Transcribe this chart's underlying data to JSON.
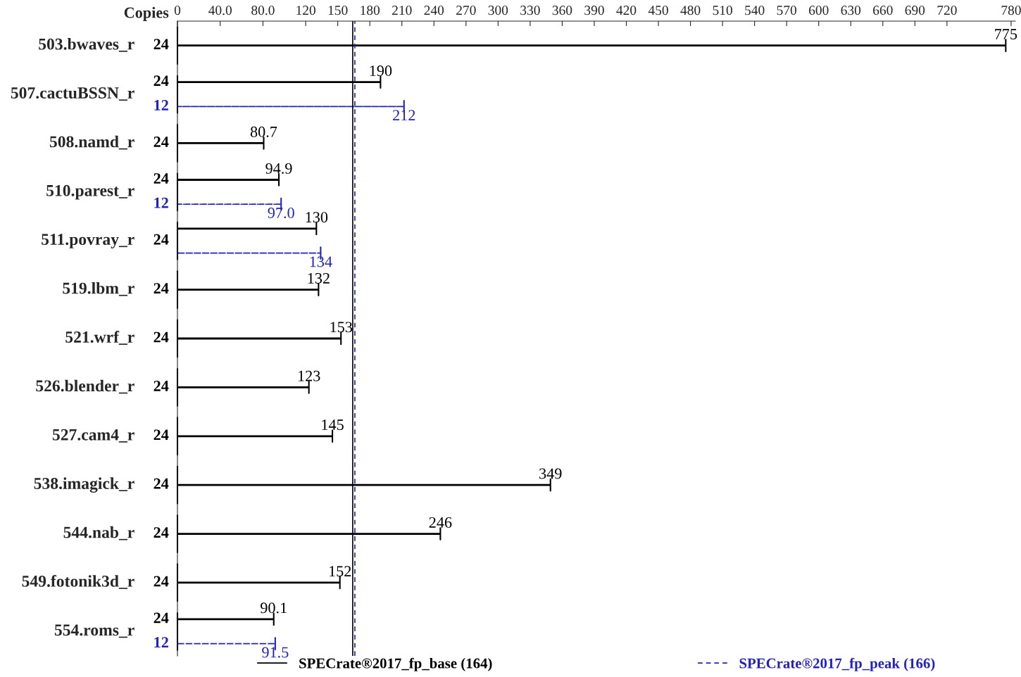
{
  "chart_data": {
    "type": "bar",
    "orientation": "horizontal",
    "categories": [
      "503.bwaves_r",
      "507.cactuBSSN_r",
      "508.namd_r",
      "510.parest_r",
      "511.povray_r",
      "519.lbm_r",
      "521.wrf_r",
      "526.blender_r",
      "527.cam4_r",
      "538.imagick_r",
      "544.nab_r",
      "549.fotonik3d_r",
      "554.roms_r"
    ],
    "series": [
      {
        "name": "SPECrate®2017_fp_base (164)",
        "color": "#000000",
        "line_style": "solid",
        "values": [
          775,
          190,
          80.7,
          94.9,
          130,
          132,
          153,
          123,
          145,
          349,
          246,
          152,
          90.1
        ],
        "value_labels": [
          "775",
          "190",
          "80.7",
          "94.9",
          "130",
          "132",
          "153",
          "123",
          "145",
          "349",
          "246",
          "152",
          "90.1"
        ]
      },
      {
        "name": "SPECrate®2017_fp_peak (166)",
        "color": "#2222bb",
        "line_style": "dashed",
        "values": [
          null,
          212,
          null,
          97.0,
          134,
          null,
          null,
          null,
          null,
          null,
          null,
          null,
          91.5
        ],
        "value_labels": [
          null,
          "212",
          null,
          "97.0",
          "134",
          null,
          null,
          null,
          null,
          null,
          null,
          null,
          "91.5"
        ]
      }
    ],
    "xlim": [
      0,
      784
    ],
    "xticks": [
      0,
      {
        "value": 40,
        "label": "40.0"
      },
      {
        "value": 80,
        "label": "80.0"
      },
      120,
      150,
      180,
      210,
      240,
      270,
      300,
      330,
      360,
      390,
      420,
      450,
      480,
      510,
      540,
      570,
      600,
      630,
      660,
      690,
      720,
      780
    ],
    "ref_lines": [
      {
        "axis": "x",
        "value": 164,
        "color": "#000000",
        "line_style": "solid"
      },
      {
        "axis": "x",
        "value": 166,
        "color": "#2222bb",
        "line_style": "dashed"
      }
    ],
    "annotations": [
      "Copies",
      "24",
      "24",
      "12",
      "24",
      "24",
      "12",
      "24",
      "24",
      "24",
      "24",
      "24",
      "24",
      "24",
      "24",
      "24",
      "12"
    ],
    "grid": false,
    "legend": "bottom"
  }
}
